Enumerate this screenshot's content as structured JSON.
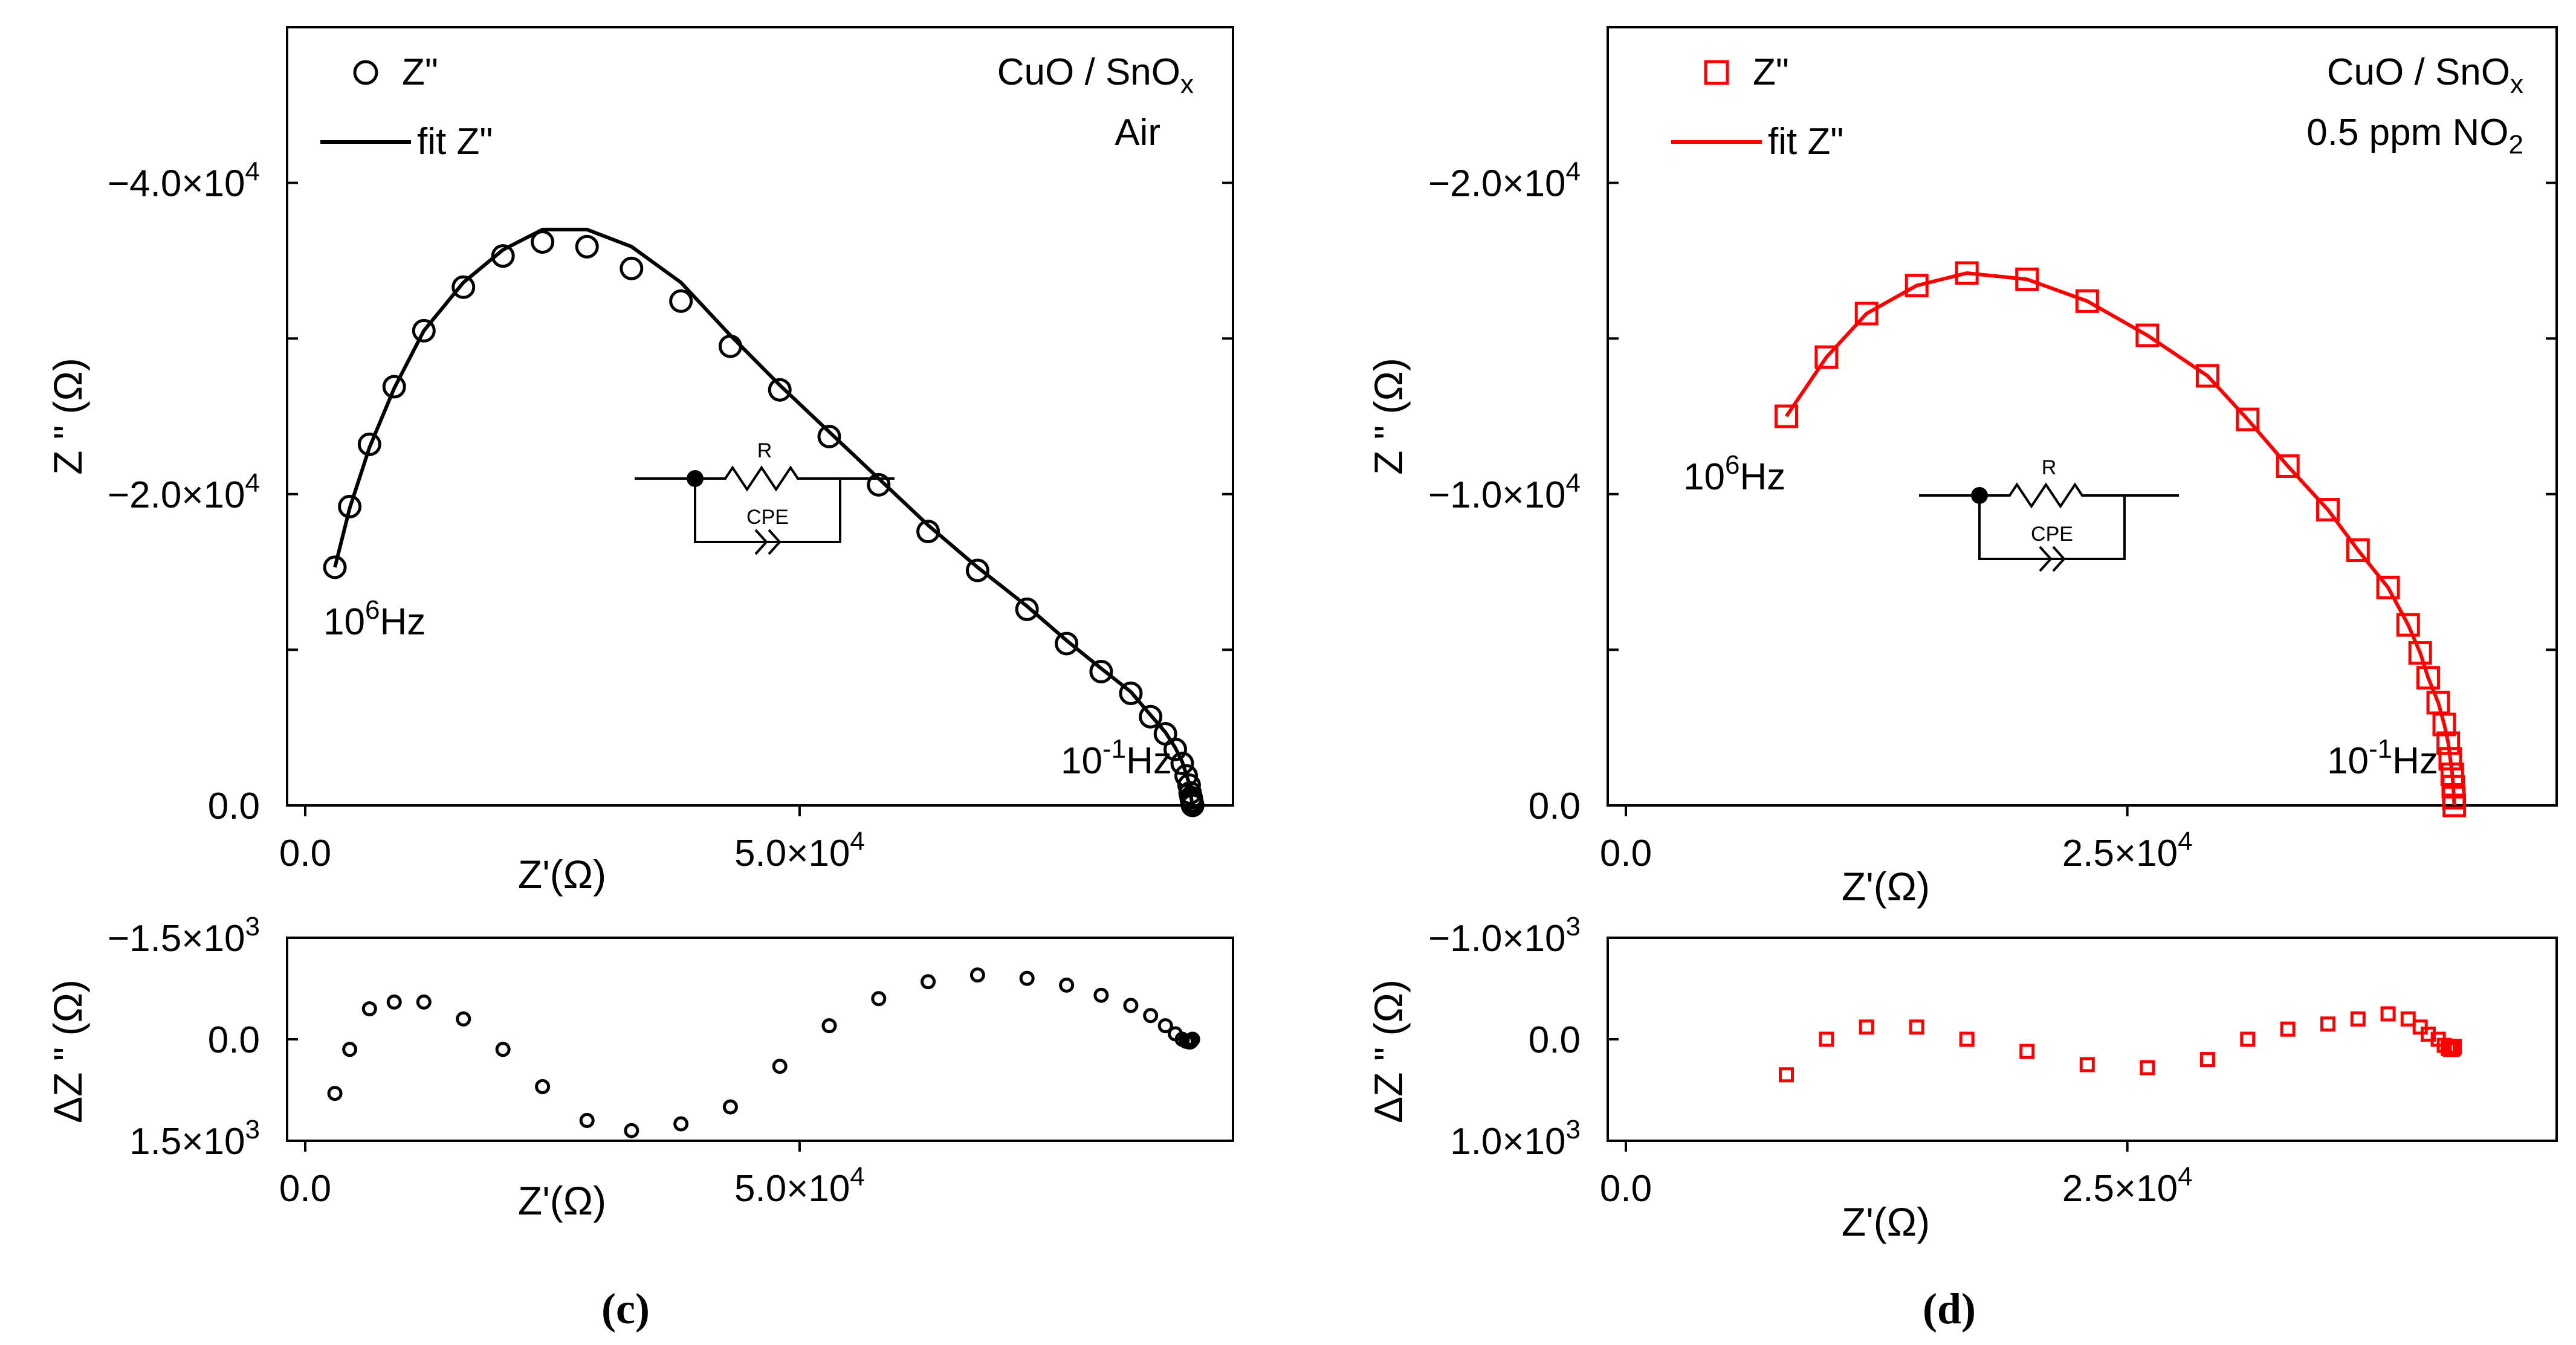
{
  "panels": [
    {
      "id": "c",
      "caption": "(c)",
      "color": "#000000",
      "marker": "circle",
      "sample_label": "CuO / SnO",
      "sample_sub": "x",
      "gas_label": "Air",
      "gas_sub": "",
      "legend": {
        "points": "Z\"",
        "fit": "fit Z\""
      },
      "circuit": {
        "r_label": "R",
        "cpe_label": "CPE"
      },
      "freq_high": {
        "base": "10",
        "exp": "6",
        "unit": "Hz"
      },
      "freq_low": {
        "base": "10",
        "exp": "-1",
        "unit": "Hz"
      },
      "main_ylabel": "Z \" (Ω)",
      "main_xlabel": "Z'(Ω)",
      "res_ylabel": "ΔZ \" (Ω)",
      "res_xlabel": "Z'(Ω)",
      "x_ticks": [
        {
          "v": 0,
          "label": "0.0"
        },
        {
          "v": 50000,
          "label": "5.0×10",
          "exp": "4"
        }
      ],
      "main_y_ticks": [
        {
          "v": 0,
          "label": "0.0"
        },
        {
          "v": 20000,
          "label": "−2.0×10",
          "exp": "4"
        },
        {
          "v": 40000,
          "label": "−4.0×10",
          "exp": "4"
        }
      ],
      "res_y_ticks": [
        {
          "v": -1500,
          "label": "−1.5×10",
          "exp": "3"
        },
        {
          "v": 0,
          "label": "0.0"
        },
        {
          "v": 1500,
          "label": "1.5×10",
          "exp": "3"
        }
      ]
    },
    {
      "id": "d",
      "caption": "(d)",
      "color": "#ff0000",
      "marker": "square",
      "sample_label": "CuO / SnO",
      "sample_sub": "x",
      "gas_label": "0.5 ppm NO",
      "gas_sub": "2",
      "legend": {
        "points": "Z\"",
        "fit": "fit Z\""
      },
      "circuit": {
        "r_label": "R",
        "cpe_label": "CPE"
      },
      "freq_high": {
        "base": "10",
        "exp": "6",
        "unit": "Hz"
      },
      "freq_low": {
        "base": "10",
        "exp": "-1",
        "unit": "Hz"
      },
      "main_ylabel": "Z \" (Ω)",
      "main_xlabel": "Z'(Ω)",
      "res_ylabel": "ΔZ \" (Ω)",
      "res_xlabel": "Z'(Ω)",
      "x_ticks": [
        {
          "v": 0,
          "label": "0.0"
        },
        {
          "v": 25000,
          "label": "2.5×10",
          "exp": "4"
        }
      ],
      "main_y_ticks": [
        {
          "v": 0,
          "label": "0.0"
        },
        {
          "v": 10000,
          "label": "−1.0×10",
          "exp": "4"
        },
        {
          "v": 20000,
          "label": "−2.0×10",
          "exp": "4"
        }
      ],
      "res_y_ticks": [
        {
          "v": -1000,
          "label": "−1.0×10",
          "exp": "3"
        },
        {
          "v": 0,
          "label": "0.0"
        },
        {
          "v": 1000,
          "label": "1.0×10",
          "exp": "3"
        }
      ]
    }
  ],
  "chart_data": [
    {
      "type": "scatter",
      "panel": "c",
      "title": "",
      "xlabel": "Z'(Ω)",
      "ylabel": "Z \" (Ω)",
      "xlim": [
        0,
        92000
      ],
      "ylim": [
        0,
        -50000
      ],
      "grid": false,
      "legend_position": "top-left",
      "series": [
        {
          "name": "Z\"",
          "marker": "circle",
          "x": [
            3000,
            4500,
            6500,
            9000,
            12000,
            16000,
            20000,
            24000,
            28500,
            33000,
            38000,
            43000,
            48000,
            53000,
            58000,
            63000,
            68000,
            73000,
            77000,
            80500,
            83500,
            85500,
            87000,
            88000,
            88700,
            89100,
            89400,
            89500,
            89600,
            89650,
            89700,
            89720,
            89740,
            89750
          ],
          "y": [
            -15300,
            -19200,
            -23200,
            -26900,
            -30500,
            -33300,
            -35300,
            -36200,
            -35900,
            -34500,
            -32400,
            -29500,
            -26700,
            -23700,
            -20600,
            -17600,
            -15100,
            -12600,
            -10400,
            -8600,
            -7200,
            -5700,
            -4600,
            -3600,
            -2700,
            -1900,
            -1300,
            -800,
            -500,
            -300,
            -150,
            -60,
            -20,
            0
          ]
        },
        {
          "name": "fit Z\"",
          "type": "line",
          "x": [
            3000,
            4500,
            6500,
            9000,
            12000,
            16000,
            20000,
            24000,
            28500,
            33000,
            38000,
            43000,
            48000,
            53000,
            58000,
            63000,
            68000,
            73000,
            77000,
            80500,
            83500,
            85500,
            87000,
            88000,
            88700,
            89100,
            89400,
            89500,
            89600,
            89650,
            89700,
            89720,
            89740,
            89750
          ],
          "y": [
            -15300,
            -19100,
            -23000,
            -26800,
            -30500,
            -33600,
            -35700,
            -37000,
            -37000,
            -35900,
            -33600,
            -30200,
            -27000,
            -24000,
            -21000,
            -18000,
            -15300,
            -12800,
            -10600,
            -8800,
            -7300,
            -5800,
            -4700,
            -3700,
            -2800,
            -2000,
            -1400,
            -900,
            -550,
            -320,
            -160,
            -70,
            -25,
            0
          ]
        }
      ]
    },
    {
      "type": "scatter",
      "panel": "c-residual",
      "title": "",
      "xlabel": "Z'(Ω)",
      "ylabel": "ΔZ \" (Ω)",
      "xlim": [
        0,
        92000
      ],
      "ylim": [
        -1500,
        1500
      ],
      "grid": false,
      "series": [
        {
          "name": "",
          "marker": "circle",
          "x": [
            3000,
            4500,
            6500,
            9000,
            12000,
            16000,
            20000,
            24000,
            28500,
            33000,
            38000,
            43000,
            48000,
            53000,
            58000,
            63000,
            68000,
            73000,
            77000,
            80500,
            83500,
            85500,
            87000,
            88000,
            88700,
            89100,
            89400,
            89500,
            89600,
            89650,
            89700,
            89720,
            89740,
            89750
          ],
          "y": [
            800,
            150,
            -450,
            -550,
            -550,
            -300,
            150,
            700,
            1200,
            1350,
            1250,
            1000,
            400,
            -200,
            -600,
            -850,
            -950,
            -900,
            -800,
            -650,
            -500,
            -350,
            -200,
            -80,
            0,
            30,
            40,
            40,
            30,
            20,
            10,
            5,
            0,
            0
          ]
        }
      ]
    },
    {
      "type": "scatter",
      "panel": "d",
      "title": "",
      "xlabel": "Z'(Ω)",
      "ylabel": "Z \" (Ω)",
      "xlim": [
        0,
        45500
      ],
      "ylim": [
        0,
        -25000
      ],
      "grid": false,
      "legend_position": "top-left",
      "series": [
        {
          "name": "Z\"",
          "marker": "square",
          "x": [
            8000,
            10000,
            12000,
            14500,
            17000,
            20500,
            24000,
            27000,
            29500,
            31500,
            33000,
            34500,
            35500,
            36500,
            37500,
            38000,
            38500,
            38800,
            39000,
            39200,
            39300,
            39400,
            39500,
            39550,
            39600
          ],
          "y": [
            -12500,
            -14400,
            -15800,
            -16700,
            -17100,
            -16900,
            -16200,
            -15100,
            -13800,
            -12400,
            -10900,
            -9500,
            -8200,
            -7000,
            -5800,
            -4900,
            -4100,
            -3300,
            -2600,
            -2000,
            -1500,
            -1000,
            -600,
            -250,
            0
          ],
          "render_x": [
            8000,
            10000,
            12000,
            14500,
            17000,
            20000,
            23000,
            26000,
            29000,
            31000,
            33000,
            35000,
            36500,
            38000,
            39000,
            39600,
            40000,
            40500,
            40800,
            41000,
            41100,
            41200,
            41250,
            41280,
            41300
          ]
        },
        {
          "name": "fit Z\"",
          "type": "line",
          "x": [
            8000,
            10000,
            12000,
            14500,
            17000,
            20000,
            23000,
            26000,
            29000,
            31000,
            33000,
            35000,
            36500,
            38000,
            39000,
            39600,
            40000,
            40500,
            40800,
            41000,
            41100,
            41200,
            41250,
            41280,
            41300
          ],
          "y": [
            -12500,
            -14400,
            -15800,
            -16700,
            -17100,
            -16900,
            -16200,
            -15100,
            -13800,
            -12400,
            -10900,
            -9500,
            -8200,
            -7000,
            -5800,
            -4900,
            -4100,
            -3300,
            -2600,
            -2000,
            -1500,
            -1000,
            -600,
            -250,
            0
          ]
        }
      ]
    },
    {
      "type": "scatter",
      "panel": "d-residual",
      "title": "",
      "xlabel": "Z'(Ω)",
      "ylabel": "ΔZ \" (Ω)",
      "xlim": [
        0,
        45500
      ],
      "ylim": [
        -1000,
        1000
      ],
      "grid": false,
      "series": [
        {
          "name": "",
          "marker": "square",
          "x": [
            8000,
            10000,
            12000,
            14500,
            17000,
            20000,
            23000,
            26000,
            29000,
            31000,
            33000,
            35000,
            36500,
            38000,
            39000,
            39600,
            40000,
            40500,
            40800,
            41000,
            41100,
            41200,
            41250,
            41280,
            41300
          ],
          "y": [
            350,
            0,
            -120,
            -120,
            0,
            120,
            250,
            280,
            200,
            0,
            -100,
            -150,
            -200,
            -250,
            -200,
            -120,
            -50,
            0,
            60,
            90,
            100,
            100,
            90,
            80,
            70
          ]
        }
      ]
    }
  ]
}
